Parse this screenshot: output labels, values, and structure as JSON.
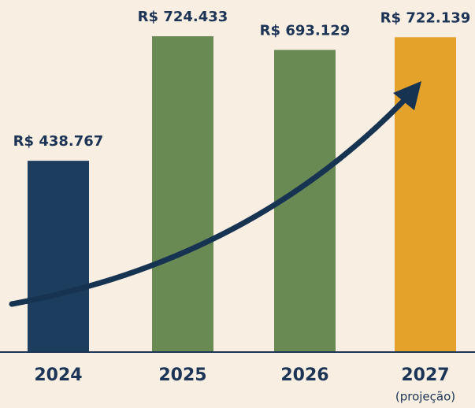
{
  "chart_data": {
    "type": "bar",
    "categories": [
      "2024",
      "2025",
      "2026",
      "2027"
    ],
    "annotation": "(projeção)",
    "values": [
      438767,
      724433,
      693129,
      722139
    ],
    "value_labels": [
      "R$ 438.767",
      "R$ 724.433",
      "R$ 693.129",
      "R$ 722.139"
    ],
    "colors": [
      "#1c3d5e",
      "#6a8a54",
      "#6a8a54",
      "#e4a22b"
    ],
    "grid": false
  }
}
